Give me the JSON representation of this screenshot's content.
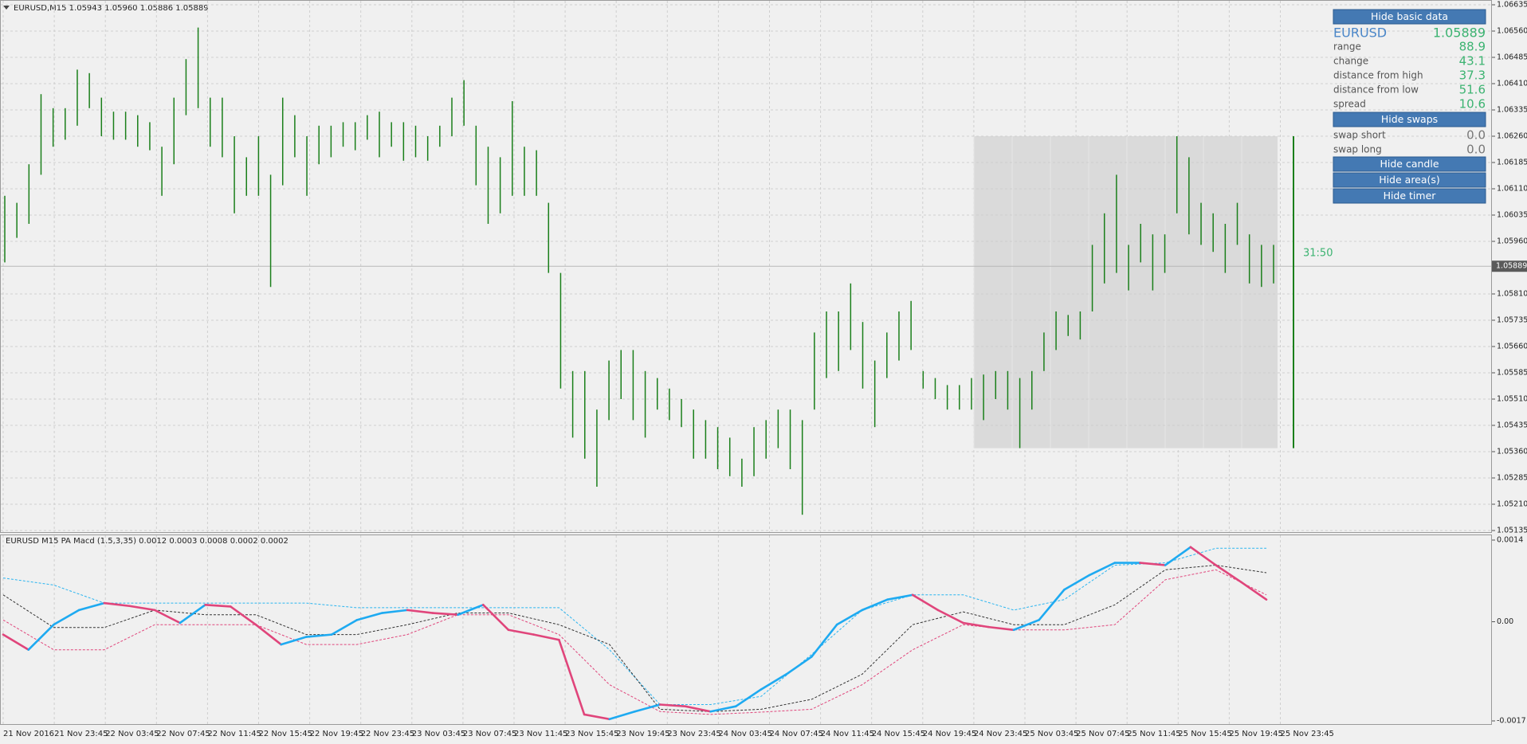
{
  "header": "EURUSD,M15  1.05943 1.05960 1.05886 1.05889",
  "chart_data": [
    {
      "type": "range-bar",
      "color": "#1a7f1a",
      "grid": true,
      "ylim": [
        1.05135,
        1.06635
      ],
      "yticks": [
        1.06635,
        {
          "value": 1.0656,
          "label": "1.06560"
        },
        1.06485,
        {
          "value": 1.0641,
          "label": "1.06410"
        },
        1.06335,
        {
          "value": 1.0626,
          "label": "1.06260"
        },
        1.06185,
        {
          "value": 1.0611,
          "label": "1.06110"
        },
        1.06035,
        {
          "value": 1.0596,
          "label": "1.05960"
        },
        {
          "value": 1.0581,
          "label": "1.05810"
        },
        1.05735,
        {
          "value": 1.0566,
          "label": "1.05660"
        },
        1.05585,
        {
          "value": 1.0551,
          "label": "1.05510"
        },
        1.05435,
        {
          "value": 1.0536,
          "label": "1.05360"
        },
        1.05285,
        {
          "value": 1.0521,
          "label": "1.05210"
        },
        1.05135
      ],
      "high": [
        1.0609,
        1.0607,
        1.0618,
        1.0638,
        1.0634,
        1.0634,
        1.0645,
        1.0644,
        1.0637,
        1.0633,
        1.0633,
        1.0632,
        1.063,
        1.0623,
        1.0637,
        1.0648,
        1.0657,
        1.0637,
        1.0637,
        1.0626,
        1.062,
        1.0626,
        1.0615,
        1.0637,
        1.0632,
        1.0626,
        1.0629,
        1.0629,
        1.063,
        1.063,
        1.0632,
        1.0633,
        1.063,
        1.063,
        1.0629,
        1.0626,
        1.0629,
        1.0637,
        1.0642,
        1.0629,
        1.0623,
        1.062,
        1.0636,
        1.0623,
        1.0622,
        1.0607,
        1.0587,
        1.0559,
        1.0559,
        1.0548,
        1.0562,
        1.0565,
        1.0565,
        1.0559,
        1.0557,
        1.0554,
        1.0551,
        1.0548,
        1.0545,
        1.0543,
        1.054,
        1.0534,
        1.0543,
        1.0545,
        1.0548,
        1.0548,
        1.0545,
        1.057,
        1.0576,
        1.0576,
        1.0584,
        1.0573,
        1.0562,
        1.057,
        1.0576,
        1.0579,
        1.0559,
        1.0557,
        1.0555,
        1.0555,
        1.0557,
        1.0558,
        1.0559,
        1.0559,
        1.0557,
        1.0559,
        1.057,
        1.0576,
        1.0575,
        1.0576,
        1.0595,
        1.0604,
        1.0615,
        1.0595,
        1.0601,
        1.0598,
        1.0598,
        1.0626,
        1.062,
        1.0607,
        1.0604,
        1.0601,
        1.0607,
        1.0598,
        1.0595,
        1.0595
      ],
      "low": [
        1.059,
        1.0597,
        1.0601,
        1.0615,
        1.0623,
        1.0625,
        1.0629,
        1.0634,
        1.0626,
        1.0625,
        1.0625,
        1.0623,
        1.0622,
        1.0609,
        1.0618,
        1.0632,
        1.0634,
        1.0623,
        1.062,
        1.0604,
        1.0609,
        1.0609,
        1.0583,
        1.0612,
        1.062,
        1.0609,
        1.0618,
        1.062,
        1.0623,
        1.0622,
        1.0625,
        1.062,
        1.0623,
        1.0619,
        1.062,
        1.0619,
        1.0623,
        1.0626,
        1.0629,
        1.0612,
        1.0601,
        1.0604,
        1.0609,
        1.0609,
        1.0609,
        1.0587,
        1.0554,
        1.054,
        1.0534,
        1.0526,
        1.0545,
        1.0551,
        1.0545,
        1.054,
        1.0548,
        1.0545,
        1.0543,
        1.0534,
        1.0534,
        1.0531,
        1.0529,
        1.0526,
        1.0529,
        1.0534,
        1.0537,
        1.0531,
        1.0518,
        1.0548,
        1.0557,
        1.0559,
        1.0565,
        1.0554,
        1.0543,
        1.0557,
        1.0562,
        1.0565,
        1.0554,
        1.0551,
        1.0548,
        1.0548,
        1.0548,
        1.0545,
        1.0551,
        1.0548,
        1.0537,
        1.0548,
        1.0559,
        1.0565,
        1.0569,
        1.0568,
        1.0576,
        1.0584,
        1.0587,
        1.0582,
        1.059,
        1.0582,
        1.0587,
        1.0604,
        1.0598,
        1.0595,
        1.0593,
        1.0587,
        1.0595,
        1.0584,
        1.0583,
        1.0584
      ],
      "current_price": 1.05889,
      "current_high": 1.0626,
      "current_low": 1.0537,
      "area_high": 1.0626,
      "area_low": 1.0537,
      "area_color": "#dadada",
      "timer": "31:50"
    },
    {
      "type": "macd",
      "title": "EURUSD M15 PA Macd (1.5,3,35) 0.0012 0.0003 0.0008 0.0002 0.0002",
      "ylim": [
        -0.0017,
        0.0014
      ],
      "yticks": [
        0.0014,
        {
          "value": 0,
          "label": "0.00"
        },
        -0.0017
      ],
      "series": [
        {
          "color": "#2bb5f0",
          "style": "dotted",
          "values": [
            0.00075,
            0.00063,
            0.00032,
            0.00032,
            0.00032,
            0.00032,
            0.00032,
            0.00024,
            0.00024,
            0.00024,
            0.00024,
            0.00024,
            -0.00048,
            -0.00142,
            -0.00142,
            -0.00128,
            -0.00056,
            0.0002,
            0.00046,
            0.00046,
            0.0002,
            0.00038,
            0.00097,
            0.00101,
            0.00126,
            0.00126
          ]
        },
        {
          "color": "#333333",
          "style": "dotted",
          "values": [
            0.00046,
            -0.0001,
            -0.0001,
            0.0002,
            0.00012,
            0.00012,
            -0.00022,
            -0.00022,
            -5e-05,
            0.00015,
            0.00015,
            -5e-05,
            -0.00039,
            -0.0015,
            -0.00154,
            -0.0015,
            -0.00133,
            -0.0009,
            -5e-05,
            0.00017,
            -5e-05,
            -5e-05,
            0.00029,
            0.00089,
            0.00097,
            0.00084
          ]
        },
        {
          "color": "#e0457b",
          "style": "dotted",
          "values": [
            3e-05,
            -0.00048,
            -0.00048,
            -5e-05,
            -5e-05,
            -5e-05,
            -0.00039,
            -0.00039,
            -0.00022,
            0.00012,
            0.00012,
            -0.00022,
            -0.00108,
            -0.00154,
            -0.00159,
            -0.00155,
            -0.0015,
            -0.00108,
            -0.00048,
            -5e-05,
            -0.00014,
            -0.00014,
            -5e-05,
            0.00072,
            0.00089,
            0.00046
          ]
        },
        {
          "color": "#1eaaf1",
          "falling_color": "#e0457b",
          "style": "solid",
          "values": [
            -0.00022,
            -0.00048,
            -5e-05,
            0.0002,
            0.00032,
            0.00027,
            0.0002,
            -2e-05,
            0.00029,
            0.00026,
            -5e-05,
            -0.00039,
            -0.00026,
            -0.00022,
            3e-05,
            0.00015,
            0.0002,
            0.00015,
            0.00012,
            0.00029,
            -0.00014,
            -0.00022,
            -0.00031,
            -0.00159,
            -0.00167,
            -0.00154,
            -0.00142,
            -0.00145,
            -0.00154,
            -0.00145,
            -0.00116,
            -0.0009,
            -0.0006,
            -5e-05,
            0.0002,
            0.00038,
            0.00046,
            0.0002,
            -2e-05,
            -9e-05,
            -0.00014,
            3e-05,
            0.00055,
            0.0008,
            0.00101,
            0.00101,
            0.00097,
            0.00128,
            0.00097,
            0.00068,
            0.00038
          ]
        }
      ]
    }
  ],
  "time_labels": [
    "21 Nov 2016",
    "21 Nov 23:45",
    "22 Nov 03:45",
    "22 Nov 07:45",
    "22 Nov 11:45",
    "22 Nov 15:45",
    "22 Nov 19:45",
    "22 Nov 23:45",
    "23 Nov 03:45",
    "23 Nov 07:45",
    "23 Nov 11:45",
    "23 Nov 15:45",
    "23 Nov 19:45",
    "23 Nov 23:45",
    "24 Nov 03:45",
    "24 Nov 07:45",
    "24 Nov 11:45",
    "24 Nov 15:45",
    "24 Nov 19:45",
    "24 Nov 23:45",
    "25 Nov 03:45",
    "25 Nov 07:45",
    "25 Nov 11:45",
    "25 Nov 15:45",
    "25 Nov 19:45",
    "25 Nov 23:45"
  ],
  "panel": {
    "buttons": [
      "Hide basic data",
      "Hide swaps",
      "Hide candle",
      "Hide area(s)",
      "Hide timer"
    ],
    "symbol": "EURUSD",
    "rows": [
      {
        "label": "range",
        "value": "88.9"
      },
      {
        "label": "change",
        "value": "43.1"
      },
      {
        "label": "distance from high",
        "value": "37.3"
      },
      {
        "label": "distance from low",
        "value": "51.6"
      },
      {
        "label": "spread",
        "value": "10.6"
      }
    ],
    "swaps": [
      {
        "label": "swap short",
        "value": "0.0"
      },
      {
        "label": "swap long",
        "value": "0.0"
      }
    ]
  }
}
